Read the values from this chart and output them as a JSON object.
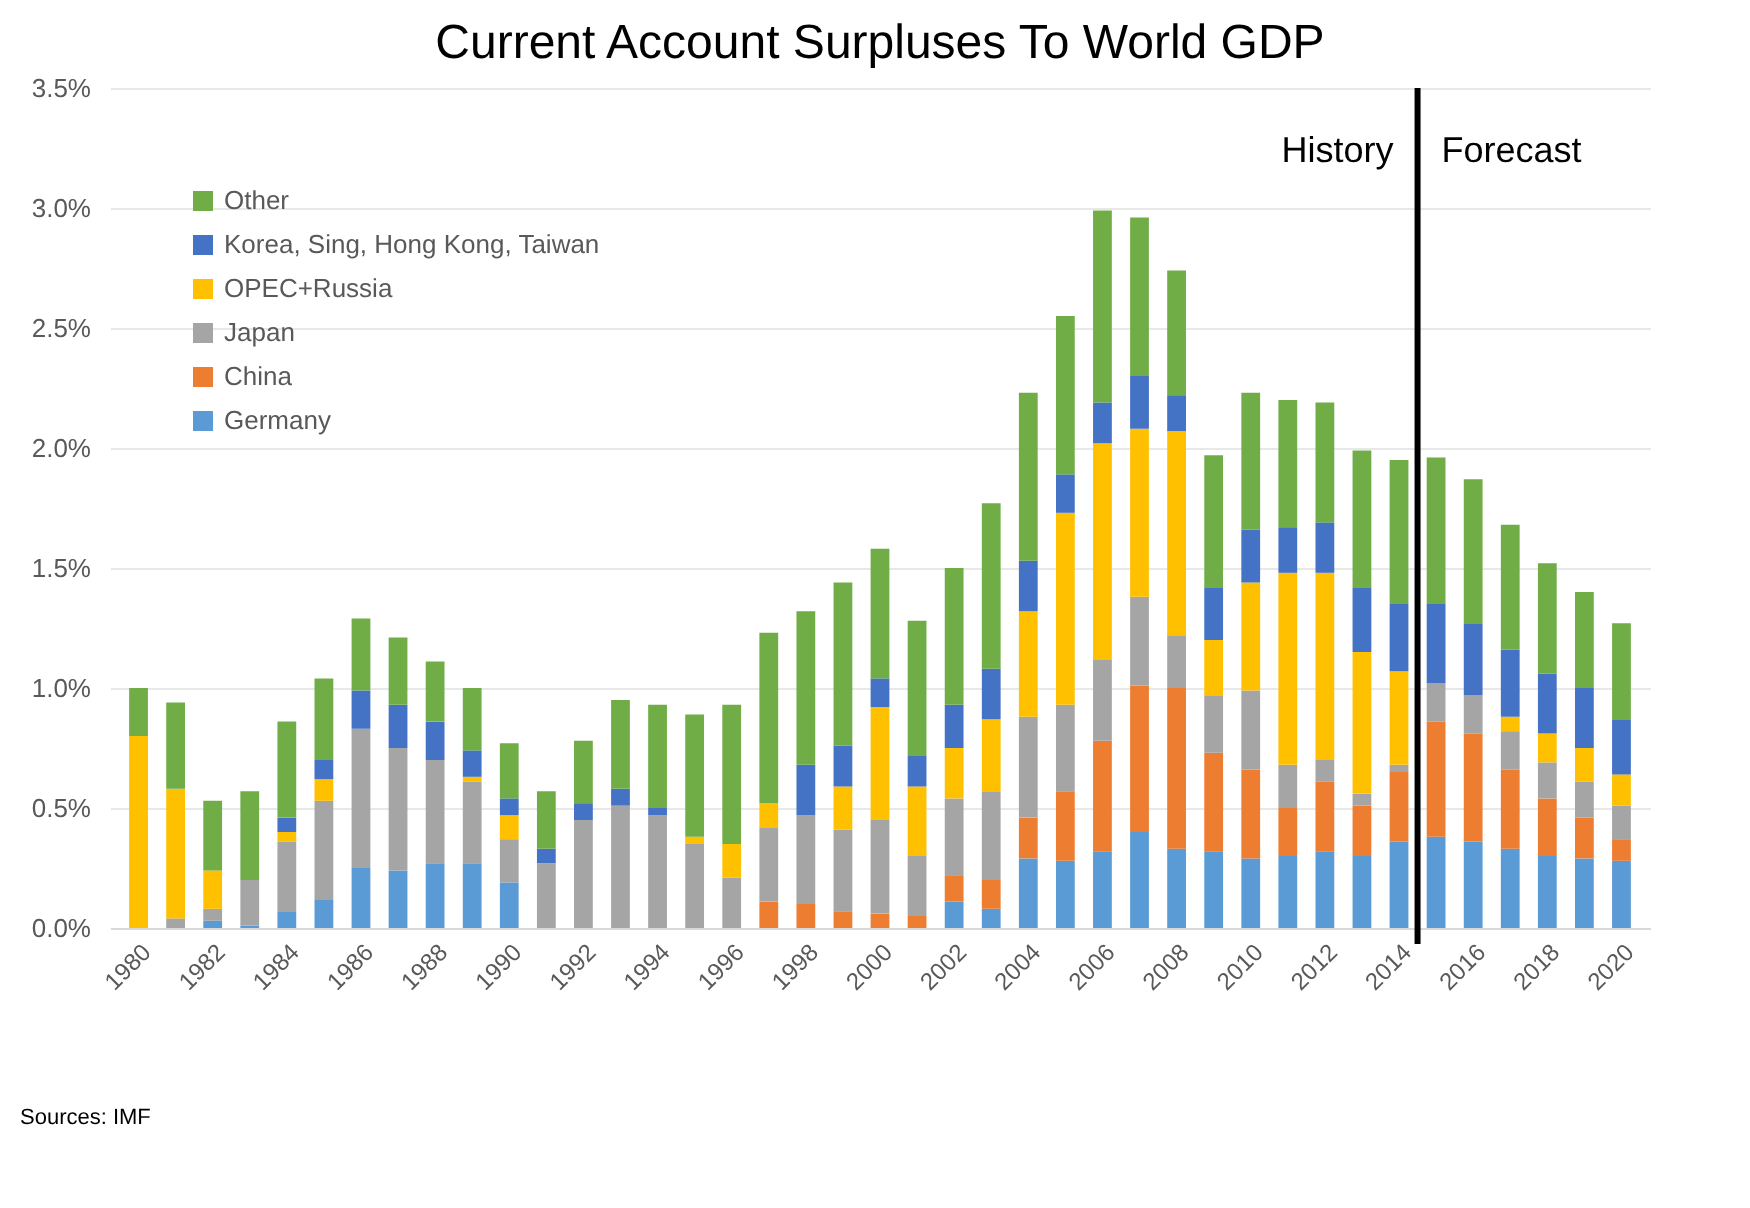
{
  "chart_data": {
    "type": "bar",
    "title": "Current Account Surpluses  To World GDP",
    "stacked": true,
    "x": [
      1980,
      1981,
      1982,
      1983,
      1984,
      1985,
      1986,
      1987,
      1988,
      1989,
      1990,
      1991,
      1992,
      1993,
      1994,
      1995,
      1996,
      1997,
      1998,
      1999,
      2000,
      2001,
      2002,
      2003,
      2004,
      2005,
      2006,
      2007,
      2008,
      2009,
      2010,
      2011,
      2012,
      2013,
      2014,
      2015,
      2016,
      2017,
      2018,
      2019,
      2020
    ],
    "xlim": [
      1979.5,
      2020.5
    ],
    "xticks": [
      1980,
      1982,
      1984,
      1986,
      1988,
      1990,
      1992,
      1994,
      1996,
      1998,
      2000,
      2002,
      2004,
      2006,
      2008,
      2010,
      2012,
      2014,
      2016,
      2018,
      2020
    ],
    "ylim": [
      0,
      3.5
    ],
    "yticks": [
      {
        "value": 0,
        "label": "0.0%"
      },
      {
        "value": 0.5,
        "label": "0.5%"
      },
      {
        "value": 1,
        "label": "1.0%"
      },
      {
        "value": 1.5,
        "label": "1.5%"
      },
      {
        "value": 2,
        "label": "2.0%"
      },
      {
        "value": 2.5,
        "label": "2.5%"
      },
      {
        "value": 3,
        "label": "3.0%"
      },
      {
        "value": 3.5,
        "label": "3.5%"
      }
    ],
    "grid": "y",
    "legend": "top left",
    "series": [
      {
        "name": "Germany",
        "color": "#5b9bd5",
        "values": [
          0,
          0,
          0.03,
          0.01,
          0.07,
          0.12,
          0.25,
          0.24,
          0.27,
          0.27,
          0.19,
          0,
          0,
          0,
          0,
          0,
          0,
          0,
          0,
          0,
          0,
          0,
          0.11,
          0.08,
          0.29,
          0.28,
          0.32,
          0.4,
          0.33,
          0.32,
          0.29,
          0.3,
          0.32,
          0.3,
          0.36,
          0.38,
          0.36,
          0.33,
          0.3,
          0.29,
          0.28
        ]
      },
      {
        "name": "China",
        "color": "#ed7d31",
        "values": [
          0,
          0,
          0,
          0,
          0,
          0,
          0,
          0,
          0,
          0,
          0,
          0,
          0,
          0,
          0,
          0,
          0,
          0.11,
          0.1,
          0.07,
          0.06,
          0.05,
          0.11,
          0.12,
          0.17,
          0.29,
          0.46,
          0.61,
          0.67,
          0.41,
          0.37,
          0.2,
          0.29,
          0.21,
          0.29,
          0.48,
          0.45,
          0.33,
          0.24,
          0.17,
          0.09
        ]
      },
      {
        "name": "Japan",
        "color": "#a5a5a5",
        "values": [
          0,
          0.04,
          0.05,
          0.19,
          0.29,
          0.41,
          0.58,
          0.51,
          0.43,
          0.34,
          0.18,
          0.27,
          0.45,
          0.51,
          0.47,
          0.35,
          0.21,
          0.31,
          0.37,
          0.34,
          0.39,
          0.25,
          0.32,
          0.37,
          0.42,
          0.36,
          0.34,
          0.37,
          0.22,
          0.24,
          0.33,
          0.18,
          0.09,
          0.05,
          0.03,
          0.16,
          0.16,
          0.16,
          0.15,
          0.15,
          0.14
        ]
      },
      {
        "name": "OPEC+Russia",
        "color": "#ffc000",
        "values": [
          0.8,
          0.54,
          0.16,
          0,
          0.04,
          0.09,
          0,
          0,
          0,
          0.02,
          0.1,
          0,
          0,
          0,
          0,
          0.03,
          0.14,
          0.1,
          0,
          0.18,
          0.47,
          0.29,
          0.21,
          0.3,
          0.44,
          0.8,
          0.9,
          0.7,
          0.85,
          0.23,
          0.45,
          0.8,
          0.78,
          0.59,
          0.39,
          0,
          0,
          0.06,
          0.12,
          0.14,
          0.13
        ]
      },
      {
        "name": "Korea, Sing, Hong Kong, Taiwan",
        "color": "#4472c4",
        "values": [
          0,
          0,
          0,
          0,
          0.06,
          0.08,
          0.16,
          0.18,
          0.16,
          0.11,
          0.07,
          0.06,
          0.07,
          0.07,
          0.03,
          0,
          0,
          0,
          0.21,
          0.17,
          0.12,
          0.13,
          0.18,
          0.21,
          0.21,
          0.16,
          0.17,
          0.22,
          0.15,
          0.22,
          0.22,
          0.19,
          0.21,
          0.27,
          0.28,
          0.33,
          0.3,
          0.28,
          0.25,
          0.25,
          0.23
        ]
      },
      {
        "name": "Other",
        "color": "#70ad47",
        "values": [
          0.2,
          0.36,
          0.29,
          0.37,
          0.4,
          0.34,
          0.3,
          0.28,
          0.25,
          0.26,
          0.23,
          0.24,
          0.26,
          0.37,
          0.43,
          0.51,
          0.58,
          0.71,
          0.64,
          0.68,
          0.54,
          0.56,
          0.57,
          0.69,
          0.7,
          0.66,
          0.8,
          0.66,
          0.52,
          0.55,
          0.57,
          0.53,
          0.5,
          0.57,
          0.6,
          0.61,
          0.6,
          0.52,
          0.46,
          0.4,
          0.4
        ]
      }
    ],
    "ref_lines": [
      {
        "axis": "x",
        "value": 2014.5,
        "color": "#000000"
      }
    ],
    "annotations": [
      "History",
      "Forecast",
      "Sources: IMF"
    ]
  }
}
